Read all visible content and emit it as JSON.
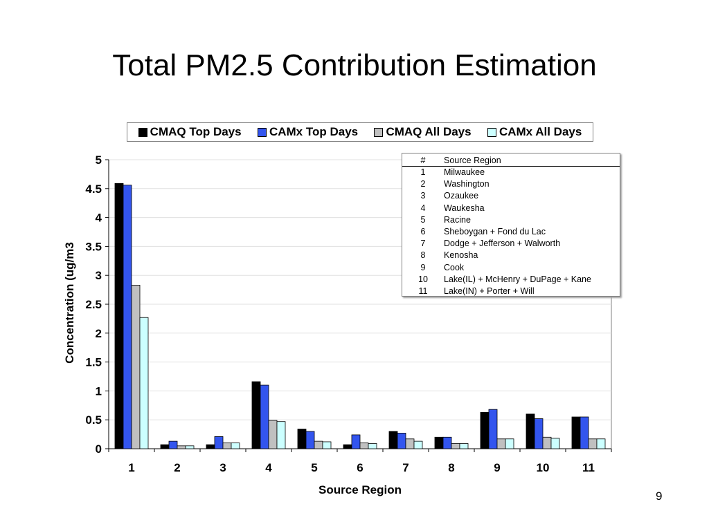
{
  "slide": {
    "title": "Total PM2.5 Contribution Estimation",
    "page_number": "9"
  },
  "legend": {
    "items": [
      {
        "label": "CMAQ Top Days",
        "color": "#000000"
      },
      {
        "label": "CAMx Top Days",
        "color": "#3355ee"
      },
      {
        "label": "CMAQ All Days",
        "color": "#c0c0c0"
      },
      {
        "label": "CAMx All Days",
        "color": "#ccffff"
      }
    ]
  },
  "region_table": {
    "header": {
      "num": "#",
      "name": "Source Region"
    },
    "rows": [
      {
        "num": "1",
        "name": "Milwaukee"
      },
      {
        "num": "2",
        "name": "Washington"
      },
      {
        "num": "3",
        "name": "Ozaukee"
      },
      {
        "num": "4",
        "name": "Waukesha"
      },
      {
        "num": "5",
        "name": "Racine"
      },
      {
        "num": "6",
        "name": "Sheboygan + Fond du Lac"
      },
      {
        "num": "7",
        "name": "Dodge + Jefferson + Walworth"
      },
      {
        "num": "8",
        "name": "Kenosha"
      },
      {
        "num": "9",
        "name": "Cook"
      },
      {
        "num": "10",
        "name": "Lake(IL) + McHenry + DuPage + Kane"
      },
      {
        "num": "11",
        "name": "Lake(IN) + Porter + Will"
      }
    ]
  },
  "chart_data": {
    "type": "bar",
    "categories": [
      "1",
      "2",
      "3",
      "4",
      "5",
      "6",
      "7",
      "8",
      "9",
      "10",
      "11"
    ],
    "series": [
      {
        "name": "CMAQ Top Days",
        "color": "#000000",
        "values": [
          4.59,
          0.07,
          0.07,
          1.16,
          0.34,
          0.07,
          0.3,
          0.2,
          0.63,
          0.6,
          0.55
        ]
      },
      {
        "name": "CAMx Top Days",
        "color": "#3355ee",
        "values": [
          4.56,
          0.13,
          0.21,
          1.1,
          0.3,
          0.24,
          0.27,
          0.2,
          0.68,
          0.52,
          0.55
        ]
      },
      {
        "name": "CMAQ All Days",
        "color": "#c0c0c0",
        "values": [
          2.83,
          0.05,
          0.1,
          0.49,
          0.13,
          0.1,
          0.17,
          0.09,
          0.17,
          0.2,
          0.17
        ]
      },
      {
        "name": "CAMx All Days",
        "color": "#ccffff",
        "values": [
          2.27,
          0.05,
          0.1,
          0.47,
          0.12,
          0.09,
          0.13,
          0.09,
          0.17,
          0.18,
          0.17
        ]
      }
    ],
    "title": "",
    "xlabel": "Source Region",
    "ylabel": "Concentration (ug/m3",
    "ylim": [
      0,
      5
    ],
    "yticks": [
      "0",
      "0.5",
      "1",
      "1.5",
      "2",
      "2.5",
      "3",
      "3.5",
      "4",
      "4.5",
      "5"
    ],
    "grid": true,
    "legend_position": "top"
  }
}
